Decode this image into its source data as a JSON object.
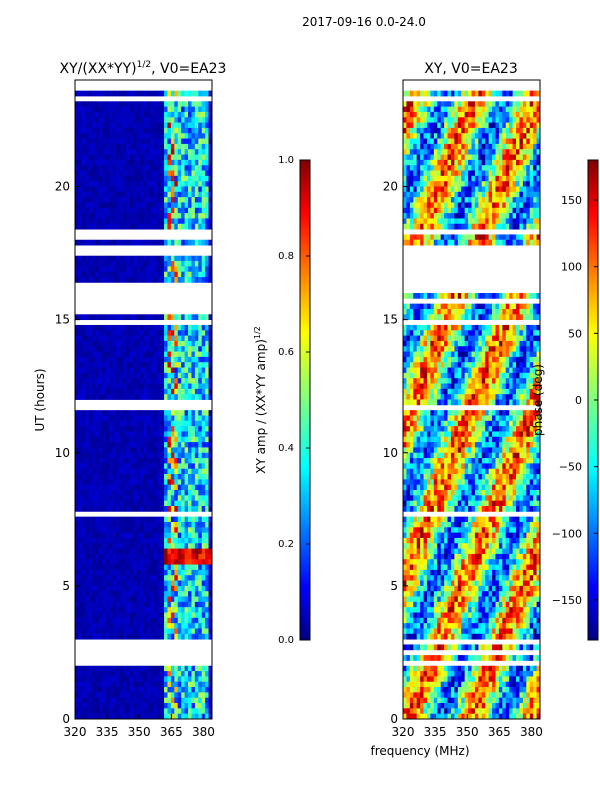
{
  "suptitle": "2017-09-16 0.0-24.0",
  "shared_xlabel": "frequency (MHz)",
  "chart_data": [
    {
      "type": "heatmap",
      "title": "XY/(XX*YY)^{1/2}, V0=EA23",
      "title_main": "XY/(XX*YY)",
      "title_sup": "1/2",
      "title_tail": ", V0=EA23",
      "xlabel": "frequency (MHz)",
      "ylabel": "UT (hours)",
      "xlim": [
        320,
        384
      ],
      "ylim": [
        0,
        24
      ],
      "xticks": [
        320,
        335,
        350,
        365,
        380
      ],
      "yticks": [
        0,
        5,
        10,
        15,
        20
      ],
      "colormap": "jet",
      "colorbar": {
        "label": "XY amp / (XX*YY amp)^{1/2}",
        "label_main": "XY amp / (XX*YY amp)",
        "label_sup": "1/2",
        "range": [
          0.0,
          1.0
        ],
        "ticks": [
          "0.0",
          "0.2",
          "0.4",
          "0.6",
          "0.8",
          "1.0"
        ]
      }
    },
    {
      "type": "heatmap",
      "title": "XY, V0=EA23",
      "xlabel": "frequency (MHz)",
      "ylabel": "",
      "xlim": [
        320,
        384
      ],
      "ylim": [
        0,
        24
      ],
      "xticks": [
        320,
        335,
        350,
        365,
        380
      ],
      "yticks": [
        0,
        5,
        10,
        15,
        20
      ],
      "colormap": "jet",
      "colorbar": {
        "label": "phase (deg)",
        "range": [
          -180,
          180
        ],
        "ticks": [
          "150",
          "100",
          "50",
          "0",
          "−50",
          "−100",
          "−150"
        ],
        "tick_values": [
          150,
          100,
          50,
          0,
          -50,
          -100,
          -150
        ]
      }
    }
  ],
  "colors": {
    "jet": [
      "#00007f",
      "#0000ff",
      "#007fff",
      "#00ffff",
      "#7fff7f",
      "#ffff00",
      "#ff7f00",
      "#ff0000",
      "#7f0000"
    ]
  }
}
